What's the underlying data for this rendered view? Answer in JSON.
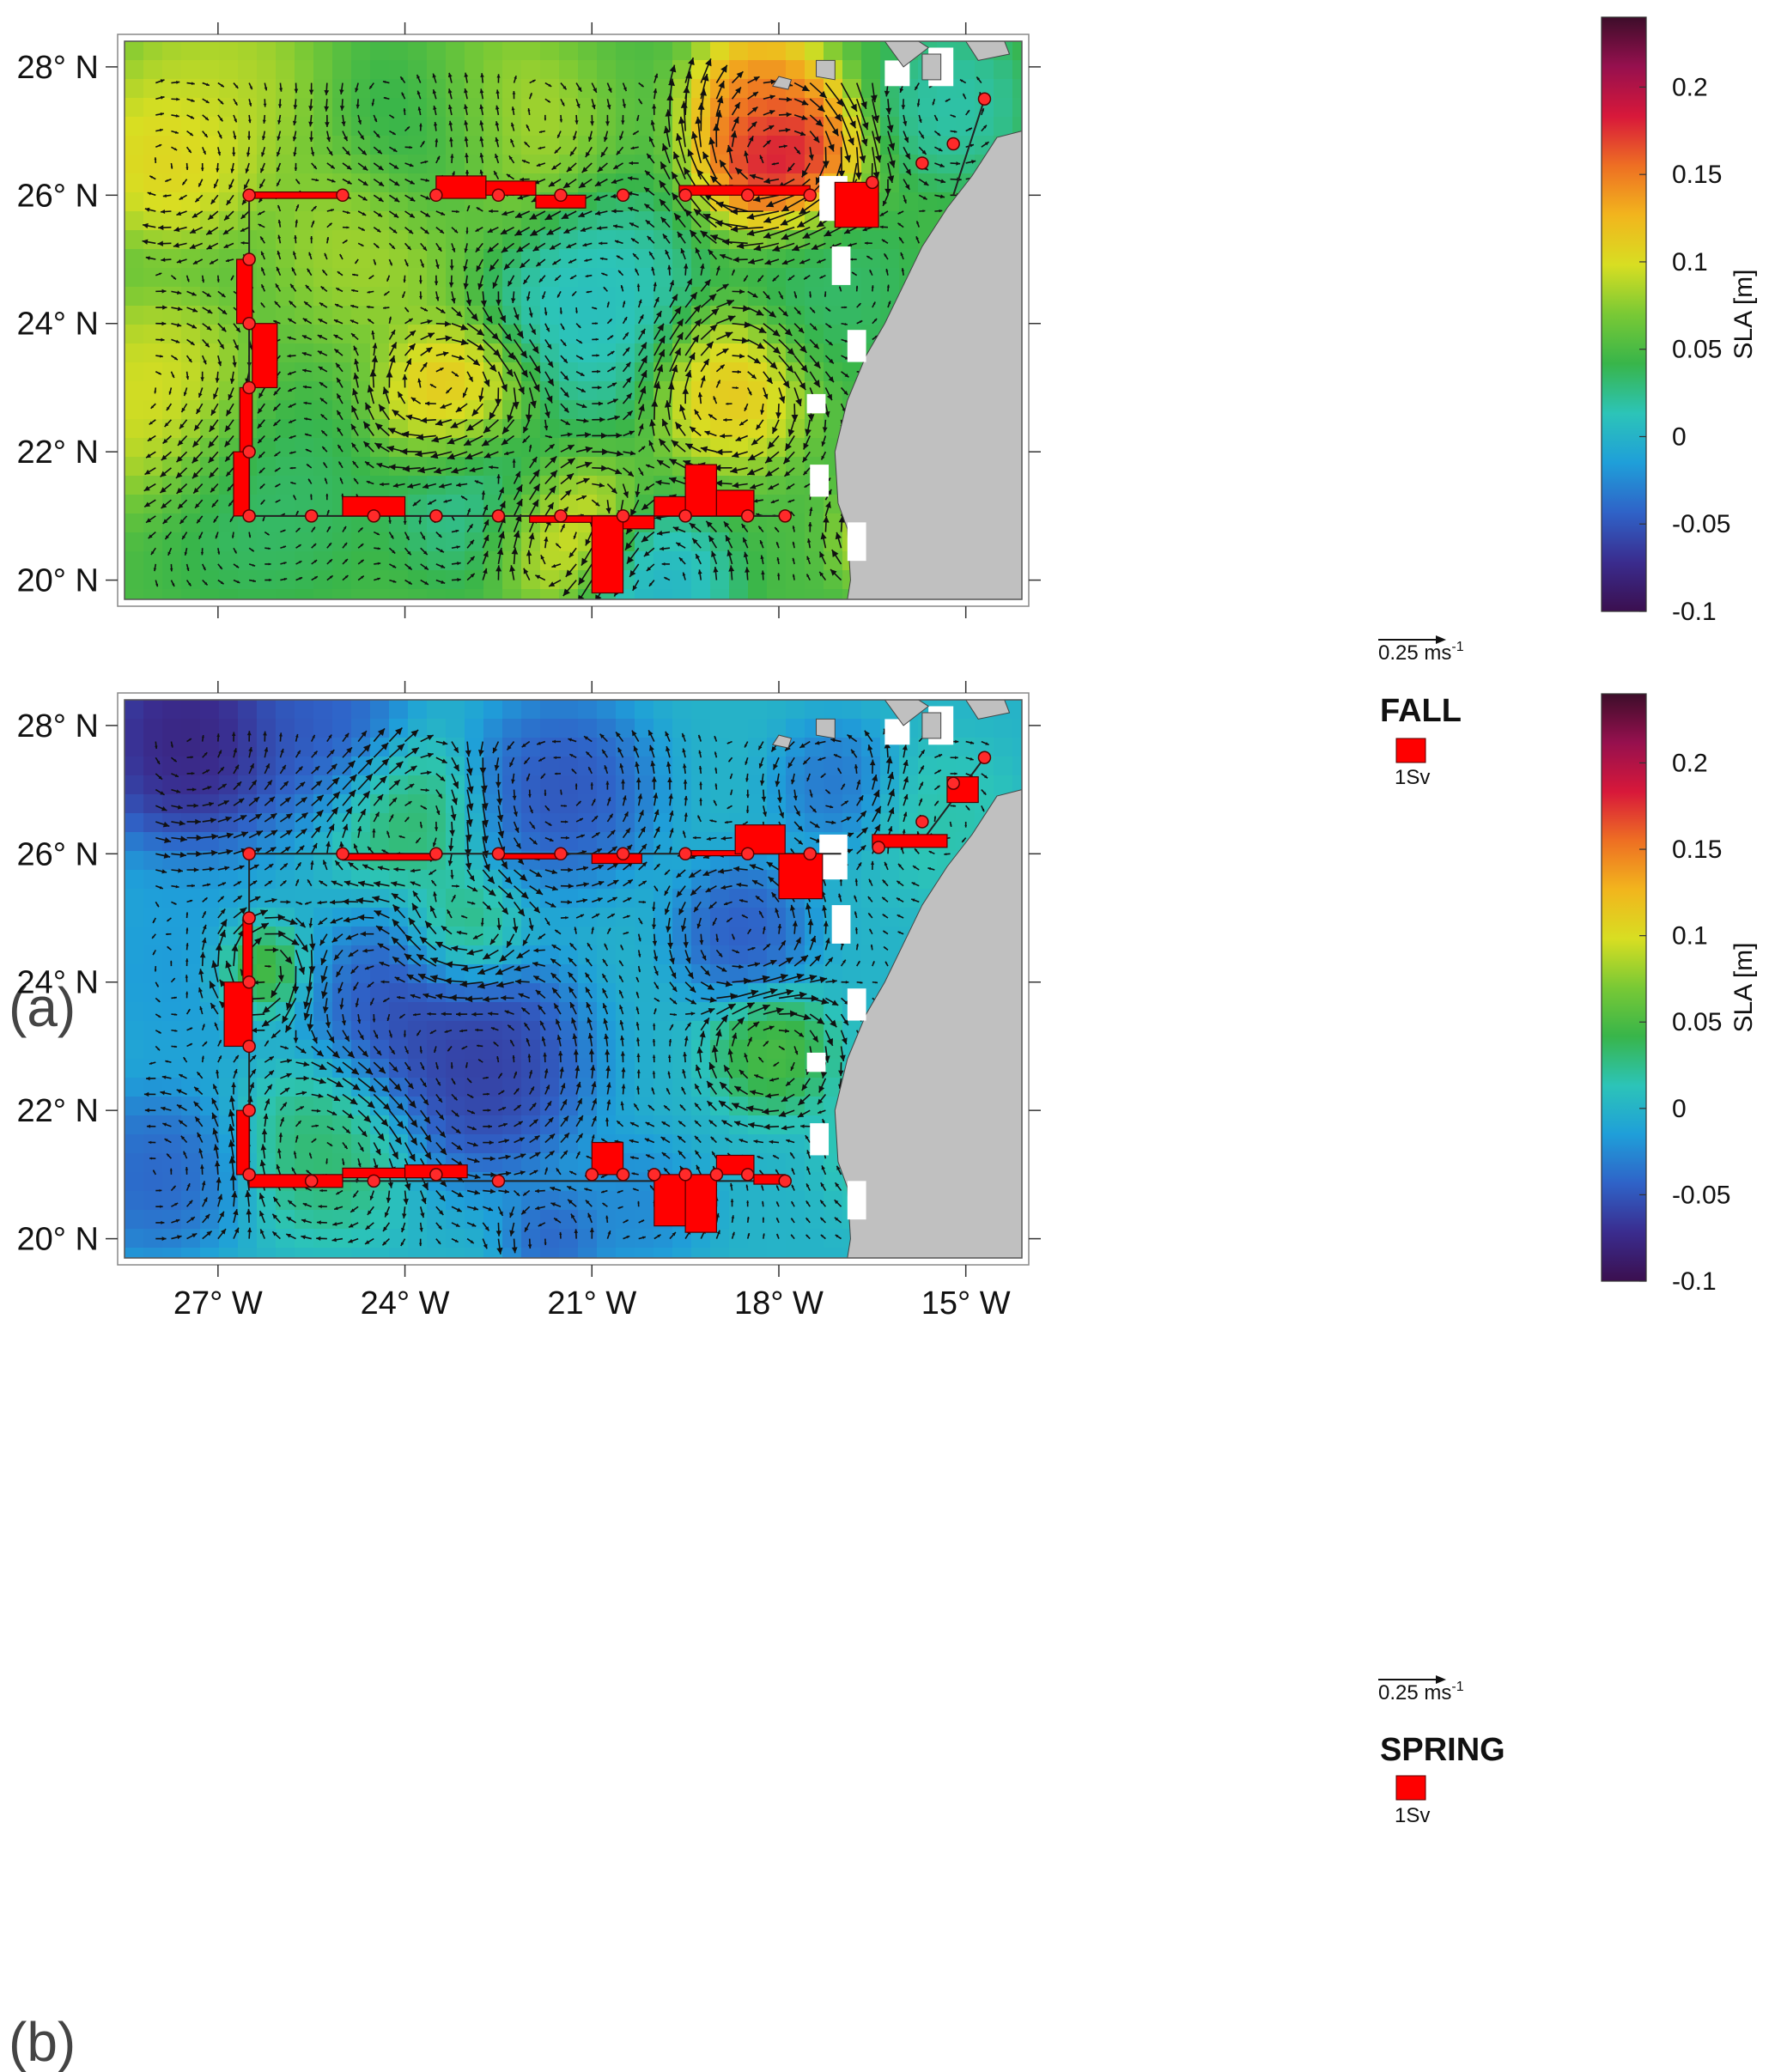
{
  "figure": {
    "x_ticks": [
      "27° W",
      "24° W",
      "21° W",
      "18° W",
      "15° W"
    ],
    "y_ticks": [
      "28° N",
      "26° N",
      "24° N",
      "22° N",
      "20° N"
    ],
    "colorbar": {
      "label": "SLA [m]",
      "ticks": [
        "0.2",
        "0.15",
        "0.1",
        "0.05",
        "0",
        "-0.05",
        "-0.1"
      ],
      "range": [
        -0.1,
        0.24
      ],
      "colormap": [
        "#3b0f4f",
        "#3a2c8e",
        "#2f63c8",
        "#1f9fd9",
        "#2cc4b8",
        "#38b54a",
        "#79c935",
        "#d8de22",
        "#f2b51d",
        "#ee6f23",
        "#d8183a",
        "#96104e",
        "#3d0d2a"
      ]
    },
    "vector_legend": {
      "label": "0.25 ms",
      "superscript": "-1"
    },
    "transport_legend": {
      "label": "1Sv"
    }
  },
  "panels": [
    {
      "letter": "(a)",
      "season": "FALL",
      "blobs": [
        {
          "lon": -27.8,
          "lat": 26.6,
          "sla": 0.12,
          "r": 1.0
        },
        {
          "lon": -27.0,
          "lat": 27.7,
          "sla": 0.095,
          "r": 1.2
        },
        {
          "lon": -22.5,
          "lat": 27.0,
          "sla": 0.1,
          "r": 1.2
        },
        {
          "lon": -18.0,
          "lat": 26.6,
          "sla": 0.22,
          "r": 0.9
        },
        {
          "lon": -18.3,
          "lat": 27.5,
          "sla": 0.16,
          "r": 0.8
        },
        {
          "lon": -23.2,
          "lat": 22.8,
          "sla": 0.14,
          "r": 0.9
        },
        {
          "lon": -18.8,
          "lat": 23.0,
          "sla": 0.13,
          "r": 0.9
        },
        {
          "lon": -21.5,
          "lat": 20.8,
          "sla": 0.12,
          "r": 0.9
        },
        {
          "lon": -28.0,
          "lat": 22.8,
          "sla": 0.11,
          "r": 1.2
        },
        {
          "lon": -24.6,
          "lat": 25.3,
          "sla": 0.09,
          "r": 1.2
        },
        {
          "lon": -16.3,
          "lat": 20.7,
          "sla": 0.1,
          "r": 0.6
        },
        {
          "lon": -21.0,
          "lat": 24.3,
          "sla": 0.0,
          "r": 1.3
        },
        {
          "lon": -22.7,
          "lat": 21.5,
          "sla": 0.01,
          "r": 1.1
        },
        {
          "lon": -20.0,
          "lat": 19.9,
          "sla": -0.01,
          "r": 0.9
        },
        {
          "lon": -23.5,
          "lat": 26.8,
          "sla": 0.02,
          "r": 1.1
        },
        {
          "lon": -15.2,
          "lat": 27.4,
          "sla": 0.01,
          "r": 0.9
        },
        {
          "lon": -17.2,
          "lat": 24.6,
          "sla": 0.03,
          "r": 1.1
        },
        {
          "lon": -26.3,
          "lat": 21.3,
          "sla": 0.03,
          "r": 1.3
        }
      ],
      "section_line": [
        [
          -26.5,
          21.0
        ],
        [
          -26.5,
          26.0
        ],
        [
          -15.2,
          26.0
        ],
        [
          -14.7,
          27.5
        ],
        [
          -26.5,
          21.0
        ],
        [
          -17.9,
          21.0
        ]
      ],
      "stations": [
        [
          -26.5,
          26.0
        ],
        [
          -25.0,
          26.0
        ],
        [
          -23.5,
          26.0
        ],
        [
          -22.5,
          26.0
        ],
        [
          -21.5,
          26.0
        ],
        [
          -20.5,
          26.0
        ],
        [
          -19.5,
          26.0
        ],
        [
          -18.5,
          26.0
        ],
        [
          -17.5,
          26.0
        ],
        [
          -16.5,
          26.2
        ],
        [
          -15.7,
          26.5
        ],
        [
          -15.2,
          26.8
        ],
        [
          -14.7,
          27.5
        ],
        [
          -26.5,
          25.0
        ],
        [
          -26.5,
          24.0
        ],
        [
          -26.5,
          23.0
        ],
        [
          -26.5,
          22.0
        ],
        [
          -26.5,
          21.0
        ],
        [
          -25.5,
          21.0
        ],
        [
          -24.5,
          21.0
        ],
        [
          -23.5,
          21.0
        ],
        [
          -22.5,
          21.0
        ],
        [
          -21.5,
          21.0
        ],
        [
          -20.5,
          21.0
        ],
        [
          -19.5,
          21.0
        ],
        [
          -18.5,
          21.0
        ],
        [
          -17.9,
          21.0
        ]
      ],
      "transport_boxes": [
        {
          "lon1": -26.5,
          "lon2": -25.0,
          "lat1": 25.95,
          "lat2": 26.05
        },
        {
          "lon1": -23.5,
          "lon2": -22.7,
          "lat1": 25.95,
          "lat2": 26.3
        },
        {
          "lon1": -22.7,
          "lon2": -21.9,
          "lat1": 26.0,
          "lat2": 26.22
        },
        {
          "lon1": -21.9,
          "lon2": -21.1,
          "lat1": 25.8,
          "lat2": 26.0
        },
        {
          "lon1": -19.6,
          "lon2": -17.5,
          "lat1": 26.0,
          "lat2": 26.15
        },
        {
          "lon1": -17.1,
          "lon2": -16.4,
          "lat1": 25.5,
          "lat2": 26.2
        },
        {
          "lon1": -26.7,
          "lon2": -26.45,
          "lat1": 24.0,
          "lat2": 25.0
        },
        {
          "lon1": -26.45,
          "lon2": -26.05,
          "lat1": 23.0,
          "lat2": 24.0
        },
        {
          "lon1": -26.65,
          "lon2": -26.45,
          "lat1": 22.0,
          "lat2": 23.0
        },
        {
          "lon1": -26.75,
          "lon2": -26.5,
          "lat1": 21.0,
          "lat2": 22.0
        },
        {
          "lon1": -25.0,
          "lon2": -24.0,
          "lat1": 21.0,
          "lat2": 21.3
        },
        {
          "lon1": -22.0,
          "lon2": -20.0,
          "lat1": 20.9,
          "lat2": 21.0
        },
        {
          "lon1": -21.0,
          "lon2": -20.5,
          "lat1": 19.8,
          "lat2": 21.0
        },
        {
          "lon1": -20.5,
          "lon2": -20.0,
          "lat1": 20.8,
          "lat2": 21.0
        },
        {
          "lon1": -20.0,
          "lon2": -19.5,
          "lat1": 21.0,
          "lat2": 21.3
        },
        {
          "lon1": -19.5,
          "lon2": -19.0,
          "lat1": 21.0,
          "lat2": 21.8
        },
        {
          "lon1": -19.0,
          "lon2": -18.4,
          "lat1": 21.0,
          "lat2": 21.4
        }
      ]
    },
    {
      "letter": "(b)",
      "season": "SPRING",
      "blobs": [
        {
          "lon": -27.5,
          "lat": 27.8,
          "sla": -0.095,
          "r": 1.3
        },
        {
          "lon": -25.3,
          "lat": 27.9,
          "sla": -0.055,
          "r": 1.0
        },
        {
          "lon": -22.8,
          "lat": 22.7,
          "sla": -0.075,
          "r": 1.3
        },
        {
          "lon": -24.0,
          "lat": 23.6,
          "sla": -0.06,
          "r": 1.1
        },
        {
          "lon": -21.5,
          "lat": 27.0,
          "sla": -0.06,
          "r": 1.1
        },
        {
          "lon": -18.6,
          "lat": 24.8,
          "sla": -0.055,
          "r": 0.8
        },
        {
          "lon": -28.0,
          "lat": 21.0,
          "sla": -0.05,
          "r": 1.0
        },
        {
          "lon": -20.3,
          "lat": 20.5,
          "sla": -0.03,
          "r": 0.8
        },
        {
          "lon": -21.6,
          "lat": 20.0,
          "sla": -0.05,
          "r": 0.6
        },
        {
          "lon": -17.1,
          "lat": 27.1,
          "sla": -0.04,
          "r": 0.7
        },
        {
          "lon": -26.4,
          "lat": 24.2,
          "sla": 0.08,
          "r": 0.55
        },
        {
          "lon": -23.1,
          "lat": 24.7,
          "sla": 0.045,
          "r": 0.7
        },
        {
          "lon": -18.1,
          "lat": 22.9,
          "sla": 0.06,
          "r": 0.7
        },
        {
          "lon": -24.0,
          "lat": 26.6,
          "sla": 0.04,
          "r": 0.9
        },
        {
          "lon": -25.2,
          "lat": 21.4,
          "sla": 0.04,
          "r": 1.0
        },
        {
          "lon": -16.0,
          "lat": 21.5,
          "sla": 0.03,
          "r": 0.9
        },
        {
          "lon": -27.6,
          "lat": 24.2,
          "sla": -0.02,
          "r": 1.2
        },
        {
          "lon": -15.3,
          "lat": 26.5,
          "sla": 0.02,
          "r": 0.9
        }
      ],
      "section_line": [
        [
          -26.5,
          26.0
        ],
        [
          -26.5,
          21.0
        ],
        [
          -26.5,
          26.0
        ],
        [
          -17.0,
          26.0
        ],
        [
          -15.7,
          26.2
        ],
        [
          -14.7,
          27.5
        ],
        [
          -26.5,
          20.9
        ],
        [
          -17.9,
          20.9
        ]
      ],
      "stations": [
        [
          -26.5,
          26.0
        ],
        [
          -25.0,
          26.0
        ],
        [
          -23.5,
          26.0
        ],
        [
          -22.5,
          26.0
        ],
        [
          -21.5,
          26.0
        ],
        [
          -20.5,
          26.0
        ],
        [
          -19.5,
          26.0
        ],
        [
          -18.5,
          26.0
        ],
        [
          -17.5,
          26.0
        ],
        [
          -16.4,
          26.1
        ],
        [
          -15.7,
          26.5
        ],
        [
          -15.2,
          27.1
        ],
        [
          -14.7,
          27.5
        ],
        [
          -26.5,
          25.0
        ],
        [
          -26.5,
          24.0
        ],
        [
          -26.5,
          23.0
        ],
        [
          -26.5,
          22.0
        ],
        [
          -26.5,
          21.0
        ],
        [
          -25.5,
          20.9
        ],
        [
          -24.5,
          20.9
        ],
        [
          -23.5,
          21.0
        ],
        [
          -22.5,
          20.9
        ],
        [
          -21.0,
          21.0
        ],
        [
          -20.5,
          21.0
        ],
        [
          -20.0,
          21.0
        ],
        [
          -19.5,
          21.0
        ],
        [
          -19.0,
          21.0
        ],
        [
          -18.5,
          21.0
        ],
        [
          -17.9,
          20.9
        ]
      ],
      "transport_boxes": [
        {
          "lon1": -25.0,
          "lon2": -23.5,
          "lat1": 25.9,
          "lat2": 26.0
        },
        {
          "lon1": -22.5,
          "lon2": -21.5,
          "lat1": 25.95,
          "lat2": 26.0
        },
        {
          "lon1": -21.0,
          "lon2": -20.2,
          "lat1": 25.85,
          "lat2": 26.0
        },
        {
          "lon1": -19.5,
          "lon2": -18.5,
          "lat1": 26.0,
          "lat2": 26.05
        },
        {
          "lon1": -18.7,
          "lon2": -17.9,
          "lat1": 26.0,
          "lat2": 26.45
        },
        {
          "lon1": -18.0,
          "lon2": -17.3,
          "lat1": 25.3,
          "lat2": 26.0
        },
        {
          "lon1": -16.5,
          "lon2": -15.3,
          "lat1": 26.1,
          "lat2": 26.3
        },
        {
          "lon1": -15.3,
          "lon2": -14.8,
          "lat1": 26.8,
          "lat2": 27.2
        },
        {
          "lon1": -26.6,
          "lon2": -26.45,
          "lat1": 24.0,
          "lat2": 25.0
        },
        {
          "lon1": -26.9,
          "lon2": -26.45,
          "lat1": 23.0,
          "lat2": 24.0
        },
        {
          "lon1": -26.7,
          "lon2": -26.5,
          "lat1": 21.0,
          "lat2": 22.0
        },
        {
          "lon1": -26.5,
          "lon2": -25.0,
          "lat1": 20.8,
          "lat2": 21.0
        },
        {
          "lon1": -25.0,
          "lon2": -23.5,
          "lat1": 20.95,
          "lat2": 21.1
        },
        {
          "lon1": -24.0,
          "lon2": -23.0,
          "lat1": 20.95,
          "lat2": 21.15
        },
        {
          "lon1": -21.0,
          "lon2": -20.5,
          "lat1": 21.0,
          "lat2": 21.5
        },
        {
          "lon1": -20.0,
          "lon2": -19.5,
          "lat1": 20.2,
          "lat2": 21.0
        },
        {
          "lon1": -19.5,
          "lon2": -19.0,
          "lat1": 20.1,
          "lat2": 21.0
        },
        {
          "lon1": -19.0,
          "lon2": -18.4,
          "lat1": 21.0,
          "lat2": 21.3
        },
        {
          "lon1": -18.4,
          "lon2": -17.9,
          "lat1": 20.85,
          "lat2": 21.0
        }
      ]
    }
  ]
}
